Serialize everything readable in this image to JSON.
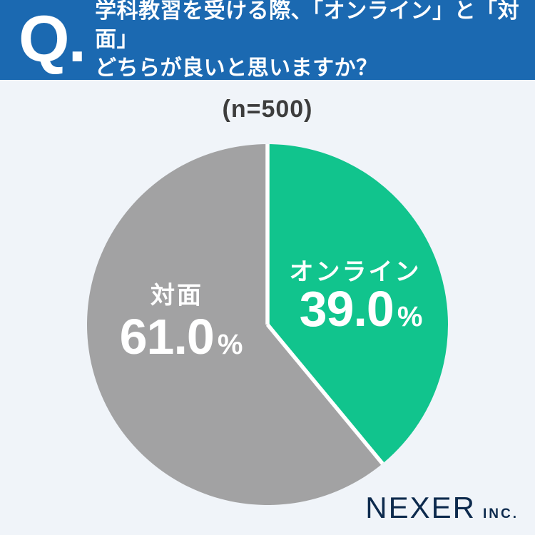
{
  "header": {
    "q_label": "Q.",
    "question_line1": "学科教習を受ける際、「オンライン」と「対面」",
    "question_line2": "どちらが良いと思いますか？"
  },
  "sample_label": "(n=500)",
  "chart_data": {
    "type": "pie",
    "title": "学科教習を受ける際、「オンライン」と「対面」どちらが良いと思いますか？",
    "sample_note": "(n=500)",
    "n": 500,
    "start_angle": "top",
    "direction": "clockwise",
    "slices": [
      {
        "label": "オンライン",
        "value": 39.0,
        "display": "39.0",
        "unit": "%",
        "color": "#11c48d"
      },
      {
        "label": "対面",
        "value": 61.0,
        "display": "61.0",
        "unit": "%",
        "color": "#a2a2a3"
      }
    ],
    "divider_color": "#ffffff",
    "label_text_color": "#ffffff",
    "legend": "none"
  },
  "footer": {
    "brand": "NEXER",
    "brand_suffix": "INC."
  },
  "colors": {
    "header_bg": "#1b69b1",
    "page_bg": "#f0f4f9",
    "note_text": "#3d3d3d",
    "logo_navy": "#0d2a4d",
    "label_white": "#ffffff"
  }
}
